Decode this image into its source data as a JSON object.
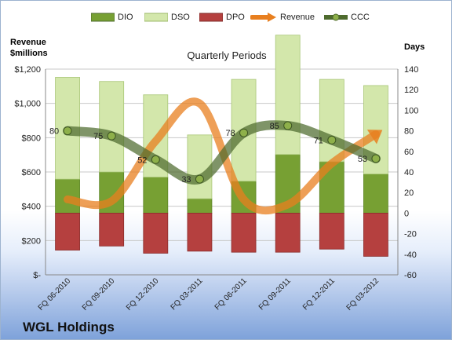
{
  "company": "WGL Holdings",
  "chart_data": {
    "type": "bar",
    "title": "Quarterly Periods",
    "categories": [
      "FQ 06-2010",
      "FQ 09-2010",
      "FQ 12-2010",
      "FQ 03-2011",
      "FQ 06-2011",
      "FQ 09-2011",
      "FQ 12-2011",
      "FQ 03-2012"
    ],
    "left_axis": {
      "label_line1": "Revenue",
      "label_line2": "$millions",
      "range": [
        0,
        1200
      ],
      "ticks": [
        0,
        200,
        400,
        600,
        800,
        1000,
        1200
      ],
      "tick_labels": [
        "$-",
        "$200",
        "$400",
        "$600",
        "$800",
        "$1,000",
        "$1,200"
      ]
    },
    "right_axis": {
      "label": "Days",
      "range": [
        -60,
        140
      ],
      "ticks": [
        -60,
        -40,
        -20,
        0,
        20,
        40,
        60,
        80,
        100,
        120,
        140
      ],
      "tick_labels": [
        "-60",
        "-40",
        "-20",
        "0",
        "20",
        "40",
        "60",
        "80",
        "100",
        "120",
        "140"
      ]
    },
    "grid": true,
    "legend_position": "top",
    "series": [
      {
        "name": "DIO",
        "kind": "bar-stacked",
        "axis": "days",
        "color": "#77a033",
        "values": [
          33,
          40,
          35,
          14,
          31,
          57,
          50,
          38
        ]
      },
      {
        "name": "DSO",
        "kind": "bar-stacked",
        "axis": "days",
        "color": "#d3e7ab",
        "values": [
          99,
          88,
          80,
          62,
          99,
          116,
          80,
          86
        ]
      },
      {
        "name": "DPO",
        "kind": "bar-negative",
        "axis": "days",
        "color": "#b5403f",
        "values": [
          -36,
          -32,
          -39,
          -37,
          -38,
          -38,
          -35,
          -42
        ]
      },
      {
        "name": "Revenue",
        "kind": "line",
        "axis": "revenue",
        "color": "#e87f1f",
        "values": [
          440,
          430,
          780,
          1000,
          440,
          410,
          650,
          820
        ]
      },
      {
        "name": "CCC",
        "kind": "line",
        "axis": "days",
        "color": "#4e6b2e",
        "values": [
          80,
          75,
          52,
          33,
          78,
          85,
          71,
          53
        ],
        "labels": [
          "80",
          "75",
          "52",
          "33",
          "78",
          "85",
          "71",
          "53"
        ]
      }
    ]
  }
}
